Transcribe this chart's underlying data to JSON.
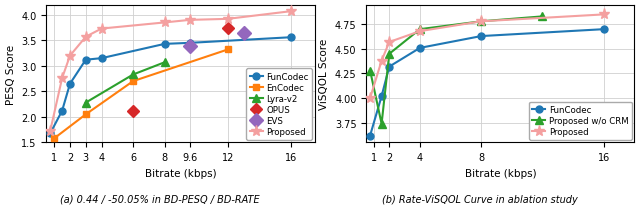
{
  "left": {
    "title": "(a) 0.44 / -50.05% in BD-PESQ / BD-RATE",
    "xlabel": "Bitrate (kbps)",
    "ylabel": "PESQ Score",
    "ylim": [
      1.5,
      4.2
    ],
    "xticks": [
      1,
      2,
      3,
      4,
      6,
      8,
      9.6,
      12,
      16
    ],
    "xtick_labels": [
      "1",
      "2",
      "3",
      "4",
      "6",
      "8",
      "9.6",
      "12",
      "16"
    ],
    "xlim": [
      0.5,
      17.5
    ],
    "series": {
      "FunCodec": {
        "x": [
          0.75,
          1.5,
          2,
          3,
          4,
          8,
          9.6,
          16
        ],
        "y": [
          1.68,
          2.12,
          2.65,
          3.12,
          3.15,
          3.43,
          3.45,
          3.56
        ],
        "color": "#1f77b4",
        "marker": "o",
        "markersize": 5,
        "linewidth": 1.5,
        "linestyle": "-"
      },
      "EnCodec": {
        "x": [
          1,
          3,
          6,
          12
        ],
        "y": [
          1.58,
          2.05,
          2.7,
          3.32
        ],
        "color": "#ff7f0e",
        "marker": "s",
        "markersize": 5,
        "linewidth": 1.5,
        "linestyle": "-"
      },
      "Lyra-v2": {
        "x": [
          3,
          6,
          8
        ],
        "y": [
          2.28,
          2.83,
          3.07
        ],
        "color": "#2ca02c",
        "marker": "^",
        "markersize": 6,
        "linewidth": 1.5,
        "linestyle": "-"
      },
      "OPUS": {
        "x": [
          6,
          12
        ],
        "y": [
          2.12,
          3.75
        ],
        "color": "#d62728",
        "marker": "D",
        "markersize": 6,
        "linewidth": 0,
        "linestyle": "none"
      },
      "EVS": {
        "x": [
          9.6,
          13
        ],
        "y": [
          3.38,
          3.65
        ],
        "color": "#9467bd",
        "marker": "D",
        "markersize": 7,
        "linewidth": 0,
        "linestyle": "none"
      },
      "Proposed": {
        "x": [
          0.75,
          1.5,
          2,
          3,
          4,
          8,
          9.6,
          12,
          16
        ],
        "y": [
          1.73,
          2.76,
          3.2,
          3.57,
          3.73,
          3.85,
          3.9,
          3.92,
          4.07
        ],
        "color": "#f4a0a0",
        "marker": "*",
        "markersize": 8,
        "linewidth": 1.5,
        "linestyle": "-"
      }
    },
    "legend_order": [
      "FunCodec",
      "EnCodec",
      "Lyra-v2",
      "OPUS",
      "EVS",
      "Proposed"
    ]
  },
  "right": {
    "title": "(b) Rate-ViSQOL Curve in ablation study",
    "xlabel": "Bitrate (kbps)",
    "ylabel": "ViSQOL Score",
    "ylim": [
      3.55,
      4.95
    ],
    "xticks": [
      1,
      2,
      4,
      8,
      16
    ],
    "xtick_labels": [
      "1",
      "2",
      "4",
      "8",
      "16"
    ],
    "xlim": [
      0.5,
      18
    ],
    "series": {
      "FunCodec": {
        "x": [
          0.75,
          1.5,
          2,
          4,
          8,
          16
        ],
        "y": [
          3.62,
          4.02,
          4.32,
          4.51,
          4.63,
          4.7
        ],
        "color": "#1f77b4",
        "marker": "o",
        "markersize": 5,
        "linewidth": 1.5,
        "linestyle": "-"
      },
      "Proposed w/o CRM": {
        "x": [
          0.75,
          1.5,
          2,
          4,
          8,
          12
        ],
        "y": [
          4.28,
          3.74,
          4.45,
          4.7,
          4.78,
          4.83
        ],
        "color": "#2ca02c",
        "marker": "^",
        "markersize": 6,
        "linewidth": 1.5,
        "linestyle": "-"
      },
      "Proposed": {
        "x": [
          0.75,
          1.5,
          2,
          4,
          8,
          16
        ],
        "y": [
          4.0,
          4.38,
          4.57,
          4.68,
          4.78,
          4.85
        ],
        "color": "#f4a0a0",
        "marker": "*",
        "markersize": 8,
        "linewidth": 1.5,
        "linestyle": "-"
      }
    },
    "legend_order": [
      "FunCodec",
      "Proposed w/o CRM",
      "Proposed"
    ]
  },
  "caption_left": "(a) 0.44 / -50.05% in BD-PESQ / BD-RATE",
  "caption_right": "(b) Rate-ViSQOL Curve in ablation study",
  "caption_fontsize": 7.0
}
